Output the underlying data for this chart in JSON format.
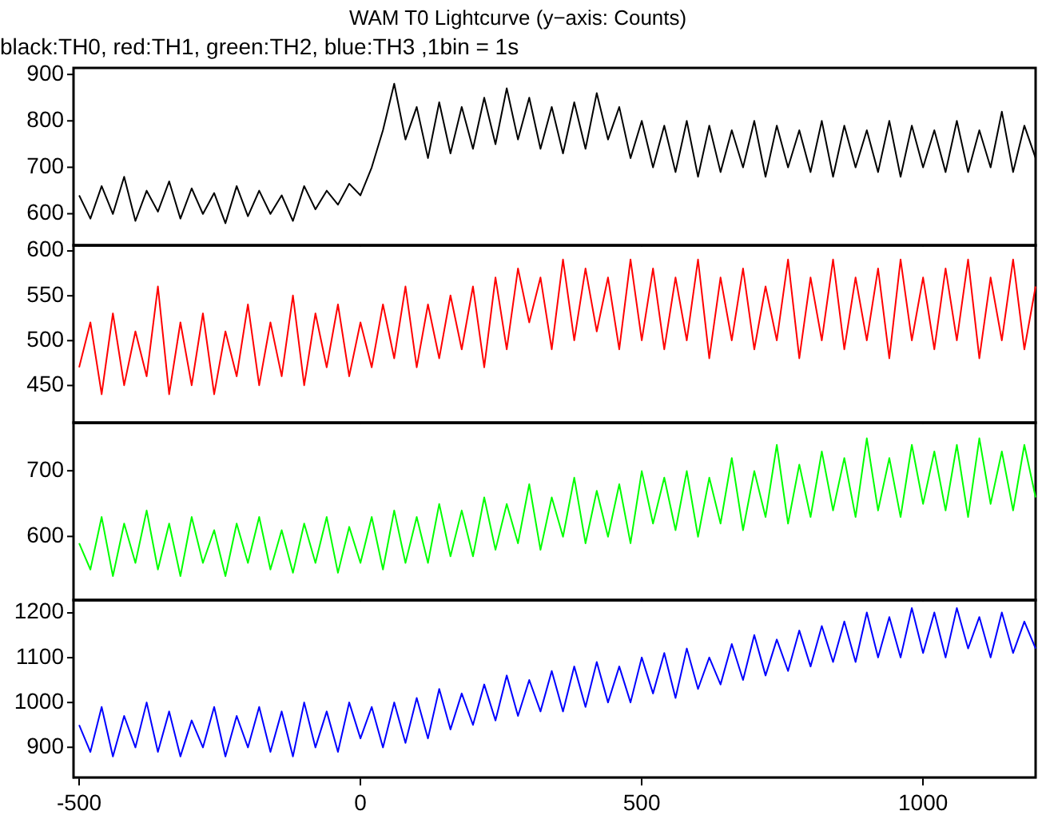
{
  "chart_data": [
    {
      "type": "line",
      "title": "WAM T0 Lightcurve (y−axis: Counts)",
      "subtitle": "black:TH0, red:TH1, green:TH2, blue:TH3 ,1bin = 1s",
      "x": [
        -500,
        -480,
        -460,
        -440,
        -420,
        -400,
        -380,
        -360,
        -340,
        -320,
        -300,
        -280,
        -260,
        -240,
        -220,
        -200,
        -180,
        -160,
        -140,
        -120,
        -100,
        -80,
        -60,
        -40,
        -20,
        0,
        20,
        40,
        60,
        80,
        100,
        120,
        140,
        160,
        180,
        200,
        220,
        240,
        260,
        280,
        300,
        320,
        340,
        360,
        380,
        400,
        420,
        440,
        460,
        480,
        500,
        520,
        540,
        560,
        580,
        600,
        620,
        640,
        660,
        680,
        700,
        720,
        740,
        760,
        780,
        800,
        820,
        840,
        860,
        880,
        900,
        920,
        940,
        960,
        980,
        1000,
        1020,
        1040,
        1060,
        1080,
        1100,
        1120,
        1140,
        1160,
        1180,
        1200
      ],
      "series": [
        {
          "color": "#000000",
          "values": [
            640,
            590,
            660,
            600,
            680,
            585,
            650,
            605,
            670,
            590,
            655,
            600,
            645,
            580,
            660,
            595,
            650,
            600,
            640,
            585,
            660,
            610,
            650,
            620,
            665,
            640,
            700,
            780,
            880,
            760,
            830,
            720,
            840,
            730,
            830,
            740,
            850,
            750,
            870,
            760,
            850,
            740,
            830,
            730,
            840,
            740,
            860,
            760,
            830,
            720,
            800,
            700,
            790,
            690,
            800,
            680,
            790,
            690,
            780,
            700,
            800,
            680,
            790,
            700,
            780,
            690,
            800,
            680,
            790,
            700,
            780,
            690,
            800,
            680,
            790,
            700,
            780,
            690,
            800,
            690,
            780,
            700,
            820,
            690,
            790,
            720
          ]
        }
      ],
      "xlim": [
        -510,
        1200
      ],
      "xticks": [
        -500,
        0,
        500,
        1000
      ],
      "ylim": [
        532,
        914
      ],
      "yticks": [
        600,
        700,
        800,
        900
      ],
      "tick_labels": "y"
    },
    {
      "type": "line",
      "x": [
        -500,
        -480,
        -460,
        -440,
        -420,
        -400,
        -380,
        -360,
        -340,
        -320,
        -300,
        -280,
        -260,
        -240,
        -220,
        -200,
        -180,
        -160,
        -140,
        -120,
        -100,
        -80,
        -60,
        -40,
        -20,
        0,
        20,
        40,
        60,
        80,
        100,
        120,
        140,
        160,
        180,
        200,
        220,
        240,
        260,
        280,
        300,
        320,
        340,
        360,
        380,
        400,
        420,
        440,
        460,
        480,
        500,
        520,
        540,
        560,
        580,
        600,
        620,
        640,
        660,
        680,
        700,
        720,
        740,
        760,
        780,
        800,
        820,
        840,
        860,
        880,
        900,
        920,
        940,
        960,
        980,
        1000,
        1020,
        1040,
        1060,
        1080,
        1100,
        1120,
        1140,
        1160,
        1180,
        1200
      ],
      "series": [
        {
          "color": "#ff0000",
          "values": [
            470,
            520,
            440,
            530,
            450,
            510,
            460,
            560,
            440,
            520,
            450,
            530,
            440,
            510,
            460,
            540,
            450,
            520,
            460,
            550,
            450,
            530,
            470,
            540,
            460,
            520,
            470,
            540,
            480,
            560,
            470,
            540,
            480,
            550,
            490,
            560,
            470,
            570,
            490,
            580,
            520,
            570,
            490,
            590,
            500,
            580,
            510,
            570,
            490,
            590,
            500,
            580,
            490,
            570,
            500,
            590,
            480,
            570,
            500,
            580,
            490,
            560,
            500,
            590,
            480,
            570,
            500,
            590,
            490,
            570,
            500,
            580,
            480,
            590,
            500,
            570,
            490,
            580,
            500,
            590,
            480,
            570,
            500,
            590,
            490,
            560
          ]
        }
      ],
      "xlim": [
        -510,
        1200
      ],
      "xticks": [
        -500,
        0,
        500,
        1000
      ],
      "ylim": [
        408,
        606
      ],
      "yticks": [
        450,
        500,
        550,
        600
      ],
      "tick_labels": "y"
    },
    {
      "type": "line",
      "x": [
        -500,
        -480,
        -460,
        -440,
        -420,
        -400,
        -380,
        -360,
        -340,
        -320,
        -300,
        -280,
        -260,
        -240,
        -220,
        -200,
        -180,
        -160,
        -140,
        -120,
        -100,
        -80,
        -60,
        -40,
        -20,
        0,
        20,
        40,
        60,
        80,
        100,
        120,
        140,
        160,
        180,
        200,
        220,
        240,
        260,
        280,
        300,
        320,
        340,
        360,
        380,
        400,
        420,
        440,
        460,
        480,
        500,
        520,
        540,
        560,
        580,
        600,
        620,
        640,
        660,
        680,
        700,
        720,
        740,
        760,
        780,
        800,
        820,
        840,
        860,
        880,
        900,
        920,
        940,
        960,
        980,
        1000,
        1020,
        1040,
        1060,
        1080,
        1100,
        1120,
        1140,
        1160,
        1180,
        1200
      ],
      "series": [
        {
          "color": "#00ff00",
          "values": [
            590,
            550,
            630,
            540,
            620,
            560,
            640,
            550,
            620,
            540,
            630,
            560,
            610,
            540,
            620,
            560,
            630,
            550,
            610,
            545,
            620,
            560,
            630,
            545,
            615,
            560,
            630,
            550,
            640,
            560,
            630,
            560,
            650,
            570,
            640,
            570,
            660,
            580,
            650,
            590,
            680,
            580,
            660,
            600,
            690,
            590,
            670,
            600,
            680,
            590,
            700,
            620,
            690,
            610,
            700,
            600,
            690,
            620,
            720,
            610,
            700,
            630,
            740,
            620,
            710,
            630,
            730,
            640,
            720,
            630,
            750,
            640,
            720,
            630,
            740,
            650,
            730,
            640,
            740,
            630,
            750,
            650,
            730,
            640,
            740,
            660
          ]
        }
      ],
      "xlim": [
        -510,
        1200
      ],
      "xticks": [
        -500,
        0,
        500,
        1000
      ],
      "ylim": [
        503,
        774
      ],
      "yticks": [
        600,
        700
      ],
      "tick_labels": "y"
    },
    {
      "type": "line",
      "x": [
        -500,
        -480,
        -460,
        -440,
        -420,
        -400,
        -380,
        -360,
        -340,
        -320,
        -300,
        -280,
        -260,
        -240,
        -220,
        -200,
        -180,
        -160,
        -140,
        -120,
        -100,
        -80,
        -60,
        -40,
        -20,
        0,
        20,
        40,
        60,
        80,
        100,
        120,
        140,
        160,
        180,
        200,
        220,
        240,
        260,
        280,
        300,
        320,
        340,
        360,
        380,
        400,
        420,
        440,
        460,
        480,
        500,
        520,
        540,
        560,
        580,
        600,
        620,
        640,
        660,
        680,
        700,
        720,
        740,
        760,
        780,
        800,
        820,
        840,
        860,
        880,
        900,
        920,
        940,
        960,
        980,
        1000,
        1020,
        1040,
        1060,
        1080,
        1100,
        1120,
        1140,
        1160,
        1180,
        1200
      ],
      "series": [
        {
          "color": "#0000ff",
          "values": [
            950,
            890,
            990,
            880,
            970,
            900,
            1000,
            890,
            980,
            880,
            960,
            900,
            990,
            880,
            970,
            900,
            990,
            890,
            980,
            880,
            1000,
            900,
            980,
            890,
            1000,
            920,
            990,
            900,
            1000,
            910,
            1010,
            920,
            1030,
            940,
            1020,
            950,
            1040,
            960,
            1060,
            970,
            1050,
            980,
            1070,
            980,
            1080,
            990,
            1090,
            1000,
            1080,
            1000,
            1100,
            1020,
            1110,
            1010,
            1120,
            1030,
            1100,
            1040,
            1130,
            1050,
            1150,
            1060,
            1140,
            1070,
            1160,
            1080,
            1170,
            1090,
            1180,
            1090,
            1200,
            1100,
            1190,
            1100,
            1210,
            1110,
            1200,
            1100,
            1210,
            1120,
            1190,
            1100,
            1200,
            1110,
            1180,
            1120
          ]
        }
      ],
      "xlim": [
        -510,
        1200
      ],
      "xticks": [
        -500,
        0,
        500,
        1000
      ],
      "ylim": [
        833,
        1228
      ],
      "yticks": [
        900,
        1000,
        1100,
        1200
      ]
    }
  ]
}
